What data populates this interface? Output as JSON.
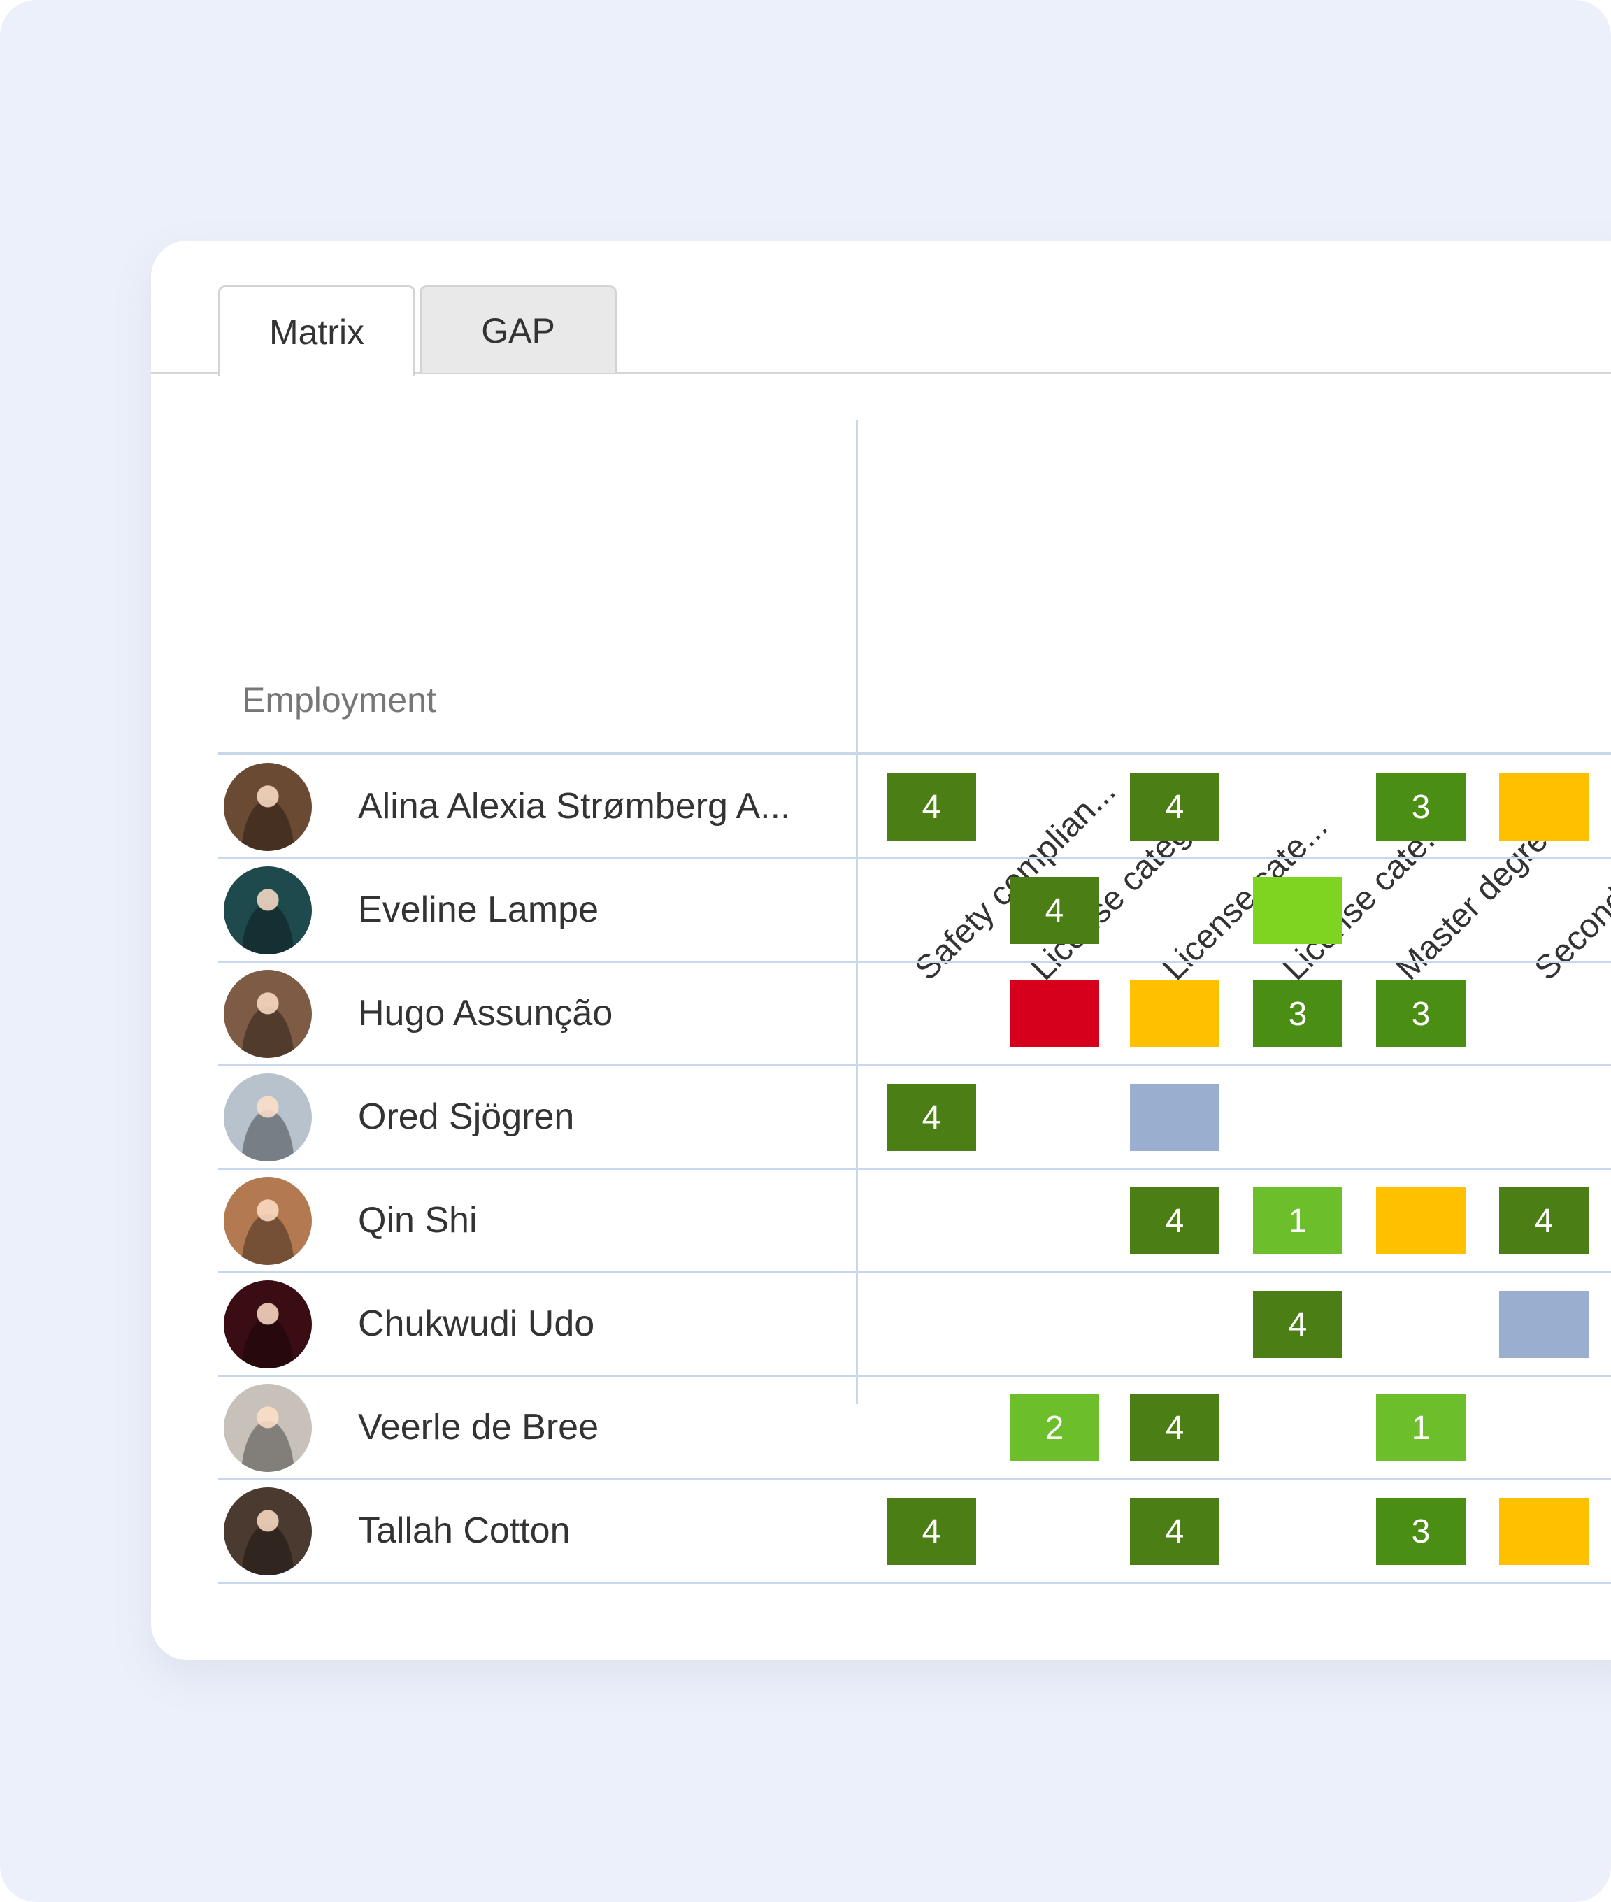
{
  "tabs": [
    {
      "label": "Matrix",
      "active": true
    },
    {
      "label": "GAP",
      "active": false
    }
  ],
  "matrix": {
    "row_header": "Employment",
    "columns": [
      "Safety complian...",
      "License categ...",
      "License cate...",
      "License cate...",
      "Master degree",
      "Second"
    ],
    "rows": [
      {
        "name": "Alina Alexia Strømberg A...",
        "avatar_color": "#6B4A33"
      },
      {
        "name": "Eveline Lampe",
        "avatar_color": "#1E4A4E"
      },
      {
        "name": "Hugo Assunção",
        "avatar_color": "#7D5B45"
      },
      {
        "name": "Ored Sjögren",
        "avatar_color": "#B8C2CC"
      },
      {
        "name": "Qin Shi",
        "avatar_color": "#B37A52"
      },
      {
        "name": "Chukwudi Udo",
        "avatar_color": "#3A0D14"
      },
      {
        "name": "Veerle de Bree",
        "avatar_color": "#C7C1BA"
      },
      {
        "name": "Tallah Cotton",
        "avatar_color": "#4A3A30"
      }
    ],
    "cells": [
      [
        {
          "value": "4",
          "color": "#4B7E14"
        },
        null,
        {
          "value": "4",
          "color": "#4B7E14"
        },
        null,
        {
          "value": "3",
          "color": "#4B8E14"
        },
        {
          "value": "",
          "color": "#FFC000"
        }
      ],
      [
        null,
        {
          "value": "4",
          "color": "#4B7E14"
        },
        null,
        {
          "value": "",
          "color": "#7FD321"
        },
        null,
        null
      ],
      [
        null,
        {
          "value": "",
          "color": "#D6001C"
        },
        {
          "value": "",
          "color": "#FFC000"
        },
        {
          "value": "3",
          "color": "#4B8E14"
        },
        {
          "value": "3",
          "color": "#4B8E14"
        },
        null
      ],
      [
        {
          "value": "4",
          "color": "#4B7E14"
        },
        null,
        {
          "value": "",
          "color": "#9AAFCF"
        },
        null,
        null,
        null
      ],
      [
        null,
        null,
        {
          "value": "4",
          "color": "#4B7E14"
        },
        {
          "value": "1",
          "color": "#6CBF2A"
        },
        {
          "value": "",
          "color": "#FFC000"
        },
        {
          "value": "4",
          "color": "#4B7E14"
        }
      ],
      [
        null,
        null,
        null,
        {
          "value": "4",
          "color": "#4B7E14"
        },
        null,
        {
          "value": "",
          "color": "#9AAFCF"
        }
      ],
      [
        null,
        {
          "value": "2",
          "color": "#6CBF2A"
        },
        {
          "value": "4",
          "color": "#4B7E14"
        },
        null,
        {
          "value": "1",
          "color": "#6CBF2A"
        },
        null
      ],
      [
        {
          "value": "4",
          "color": "#4B7E14"
        },
        null,
        {
          "value": "4",
          "color": "#4B7E14"
        },
        null,
        {
          "value": "3",
          "color": "#4B8E14"
        },
        {
          "value": "",
          "color": "#FFC000"
        }
      ]
    ]
  }
}
